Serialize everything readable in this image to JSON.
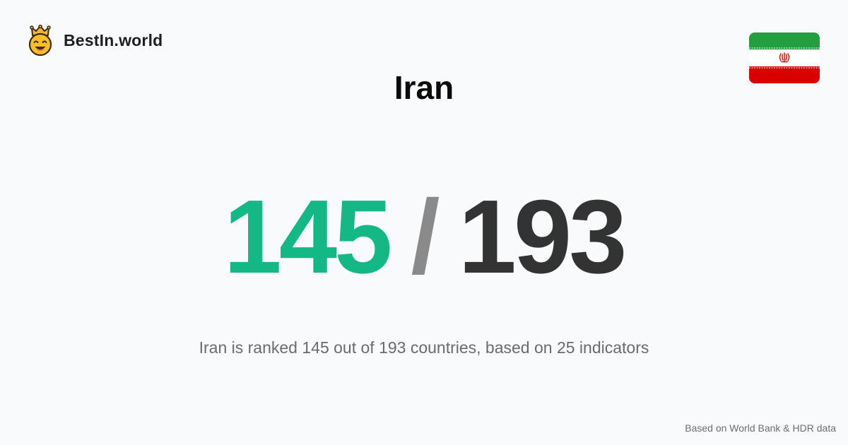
{
  "brand": {
    "name": "BestIn.world",
    "logo_icon": "crowned-smiley-icon"
  },
  "country": {
    "name": "Iran",
    "flag_icon": "iran-flag-icon"
  },
  "rank": {
    "value": "145",
    "separator": "/",
    "total": "193"
  },
  "summary": "Iran is ranked 145 out of 193 countries, based on 25 indicators",
  "footer": {
    "source": "Based on World Bank & HDR data"
  },
  "colors": {
    "background": "#f9fafb",
    "rank_value": "#14b885",
    "rank_separator": "#8a8a8a",
    "rank_total": "#333333",
    "flag_green": "#239f40",
    "flag_white": "#ffffff",
    "flag_red": "#da0000"
  }
}
